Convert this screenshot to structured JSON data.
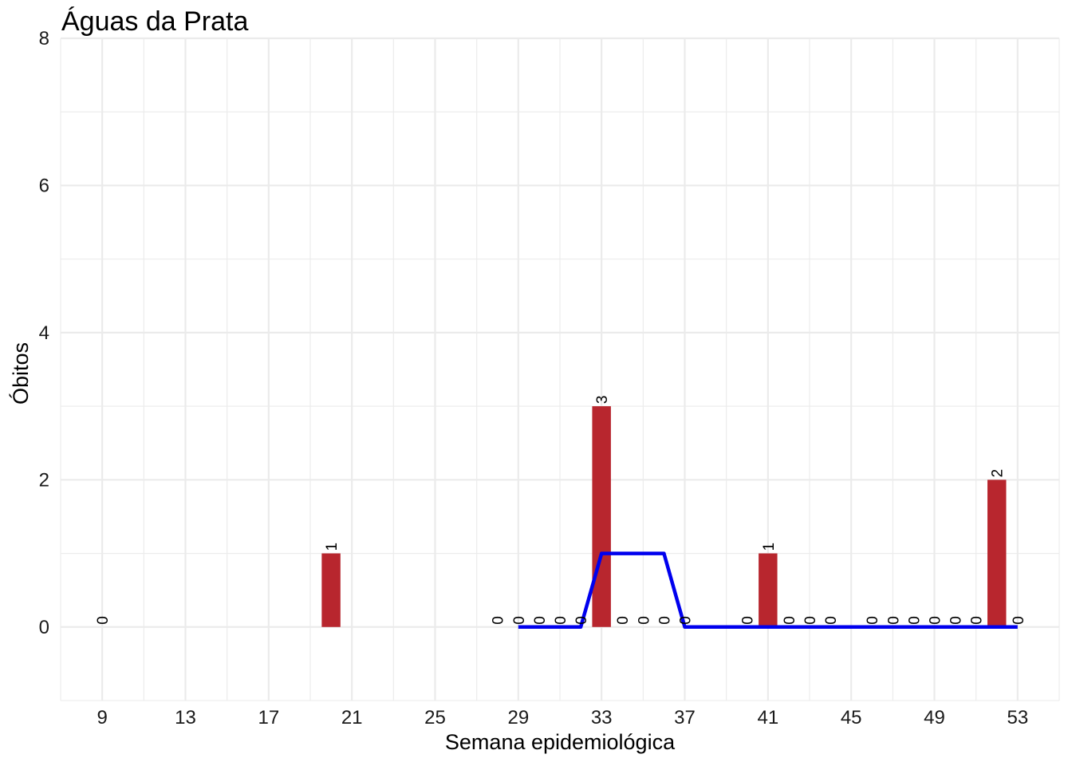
{
  "chart_data": {
    "type": "bar",
    "title": "Águas da Prata",
    "xlabel": "Semana epidemiológica",
    "ylabel": "Óbitos",
    "xlim": [
      7,
      55
    ],
    "ylim": [
      -1,
      8
    ],
    "x_ticks": [
      9,
      13,
      17,
      21,
      25,
      29,
      33,
      37,
      41,
      45,
      49,
      53
    ],
    "y_ticks": [
      0,
      2,
      4,
      6,
      8
    ],
    "grid": true,
    "legend": "none",
    "colors": {
      "bar": "#B8262E",
      "line": "#0000EE",
      "grid": "#EBEBEB"
    },
    "series": [
      {
        "type": "bar",
        "x": [
          9,
          20,
          28,
          29,
          30,
          31,
          32,
          33,
          34,
          35,
          36,
          37,
          40,
          41,
          42,
          43,
          44,
          46,
          47,
          48,
          49,
          50,
          51,
          52,
          53
        ],
        "values": [
          0,
          1,
          0,
          0,
          0,
          0,
          0,
          3,
          0,
          0,
          0,
          0,
          0,
          1,
          0,
          0,
          0,
          0,
          0,
          0,
          0,
          0,
          0,
          2,
          0
        ],
        "labels": [
          "0",
          "1",
          "0",
          "0",
          "0",
          "0",
          "0",
          "3",
          "0",
          "0",
          "0",
          "0",
          "0",
          "1",
          "0",
          "0",
          "0",
          "0",
          "0",
          "0",
          "0",
          "0",
          "0",
          "2",
          "0"
        ]
      },
      {
        "type": "line",
        "x": [
          29,
          30,
          31,
          32,
          33,
          34,
          35,
          36,
          37,
          38,
          39,
          40,
          41,
          42,
          43,
          44,
          45,
          46,
          47,
          48,
          49,
          50,
          51,
          52,
          53
        ],
        "values": [
          0,
          0,
          0,
          0,
          1,
          1,
          1,
          1,
          0,
          0,
          0,
          0,
          0,
          0,
          0,
          0,
          0,
          0,
          0,
          0,
          0,
          0,
          0,
          0,
          0
        ]
      }
    ]
  }
}
